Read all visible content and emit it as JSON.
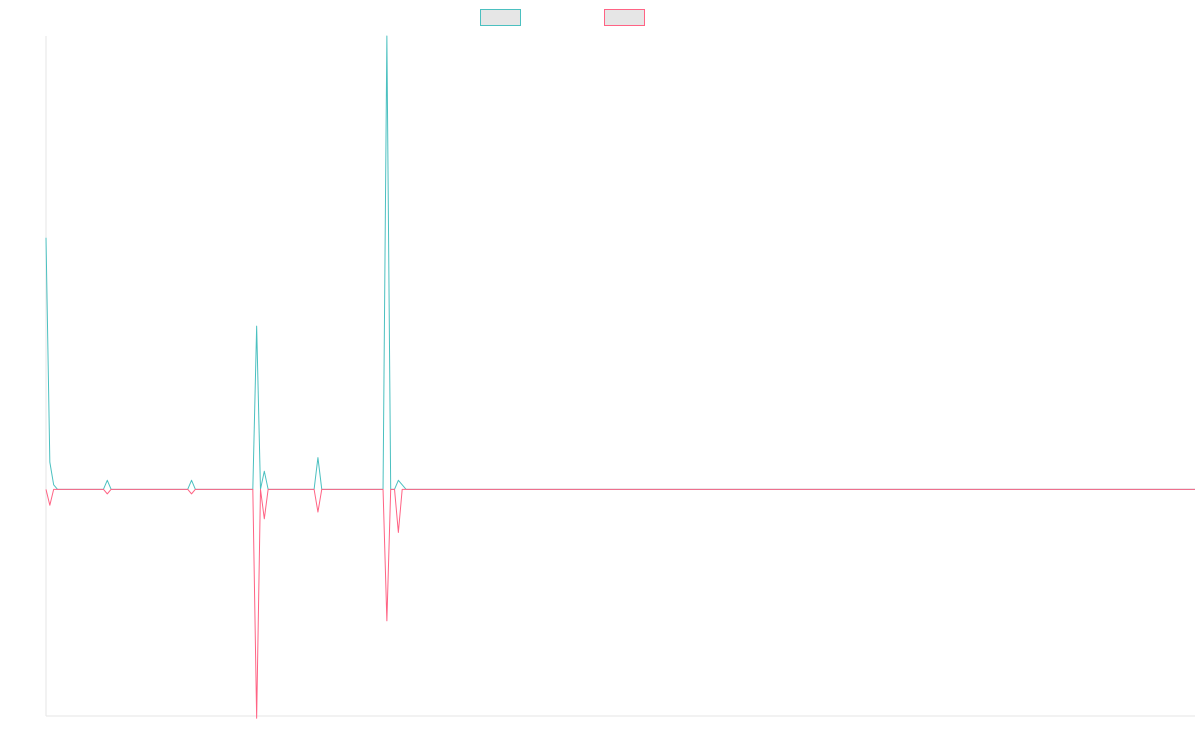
{
  "colors": {
    "series_a": "#4bc0c0",
    "series_b": "#ff6384",
    "legend_fill": "#e6e6e6",
    "axis": "#e5e5e5"
  },
  "chart_data": {
    "type": "line",
    "title": "",
    "xlabel": "",
    "ylabel": "",
    "grid": false,
    "legend_position": "top-center",
    "ylim": [
      -100,
      200
    ],
    "x": [
      0,
      1,
      2,
      3,
      4,
      5,
      6,
      7,
      8,
      9,
      10,
      11,
      12,
      13,
      14,
      15,
      16,
      17,
      18,
      19,
      20,
      21,
      22,
      23,
      24,
      25,
      26,
      27,
      28,
      29,
      30,
      31,
      32,
      33,
      34,
      35,
      36,
      37,
      38,
      39,
      40,
      41,
      42,
      43,
      44,
      45,
      46,
      47,
      48,
      49,
      50,
      51,
      52,
      53,
      54,
      55,
      56,
      57,
      58,
      59,
      60,
      61,
      62,
      63,
      64,
      65,
      66,
      67,
      68,
      69,
      70,
      71,
      72,
      73,
      74,
      75,
      76,
      77,
      78,
      79,
      80,
      81,
      82,
      83,
      84,
      85,
      86,
      87,
      88,
      89,
      90,
      91,
      92,
      93,
      94,
      95,
      96,
      97,
      98,
      99,
      100,
      101,
      102,
      103,
      104,
      105,
      106,
      107,
      108,
      109,
      110,
      111,
      112,
      113,
      114,
      115,
      116,
      117,
      118,
      119,
      120,
      121,
      122,
      123,
      124,
      125,
      126,
      127,
      128,
      129,
      130,
      131,
      132,
      133,
      134,
      135,
      136,
      137,
      138,
      139,
      140,
      141,
      142,
      143,
      144,
      145,
      146,
      147,
      148,
      149,
      150,
      151,
      152,
      153,
      154,
      155,
      156,
      157,
      158,
      159,
      160,
      161,
      162,
      163,
      164,
      165,
      166,
      167,
      168,
      169,
      170,
      171,
      172,
      173,
      174,
      175,
      176,
      177,
      178,
      179,
      180,
      181,
      182,
      183,
      184,
      185,
      186,
      187,
      188,
      189,
      190,
      191,
      192,
      193,
      194,
      195,
      196,
      197,
      198,
      199,
      200,
      201,
      202,
      203,
      204,
      205,
      206,
      207,
      208,
      209,
      210,
      211,
      212,
      213,
      214,
      215,
      216,
      217,
      218,
      219,
      220,
      221,
      222,
      223,
      224,
      225,
      226,
      227,
      228,
      229,
      230,
      231,
      232,
      233,
      234,
      235,
      236,
      237,
      238,
      239,
      240,
      241,
      242,
      243,
      244,
      245,
      246,
      247,
      248,
      249,
      250,
      251,
      252,
      253,
      254,
      255,
      256,
      257,
      258,
      259,
      260,
      261,
      262,
      263,
      264,
      265,
      266,
      267,
      268,
      269,
      270,
      271,
      272,
      273,
      274,
      275,
      276,
      277,
      278,
      279,
      280,
      281,
      282,
      283,
      284,
      285,
      286,
      287,
      288,
      289,
      290,
      291,
      292,
      293,
      294,
      295,
      296,
      297,
      298,
      299,
      300
    ],
    "series": [
      {
        "color": "#4bc0c0",
        "points": [
          [
            0,
            111
          ],
          [
            1,
            12
          ],
          [
            2,
            2
          ],
          [
            3,
            0
          ],
          [
            15,
            0
          ],
          [
            16,
            4
          ],
          [
            17,
            0
          ],
          [
            37,
            0
          ],
          [
            38,
            4
          ],
          [
            39,
            0
          ],
          [
            54,
            0
          ],
          [
            55,
            72
          ],
          [
            56,
            0
          ],
          [
            57,
            8
          ],
          [
            58,
            0
          ],
          [
            70,
            0
          ],
          [
            71,
            14
          ],
          [
            72,
            0
          ],
          [
            88,
            0
          ],
          [
            89,
            200
          ],
          [
            90,
            0
          ],
          [
            91,
            0
          ],
          [
            92,
            4
          ],
          [
            93,
            2
          ],
          [
            94,
            0
          ],
          [
            300,
            0
          ]
        ]
      },
      {
        "color": "#ff6384",
        "points": [
          [
            0,
            0
          ],
          [
            1,
            -7
          ],
          [
            2,
            0
          ],
          [
            15,
            0
          ],
          [
            16,
            -2
          ],
          [
            17,
            0
          ],
          [
            37,
            0
          ],
          [
            38,
            -2
          ],
          [
            39,
            0
          ],
          [
            54,
            0
          ],
          [
            55,
            -101
          ],
          [
            56,
            0
          ],
          [
            57,
            -13
          ],
          [
            58,
            0
          ],
          [
            70,
            0
          ],
          [
            71,
            -10
          ],
          [
            72,
            0
          ],
          [
            88,
            0
          ],
          [
            89,
            -58
          ],
          [
            90,
            0
          ],
          [
            91,
            0
          ],
          [
            92,
            -19
          ],
          [
            93,
            0
          ],
          [
            300,
            0
          ]
        ]
      }
    ]
  }
}
